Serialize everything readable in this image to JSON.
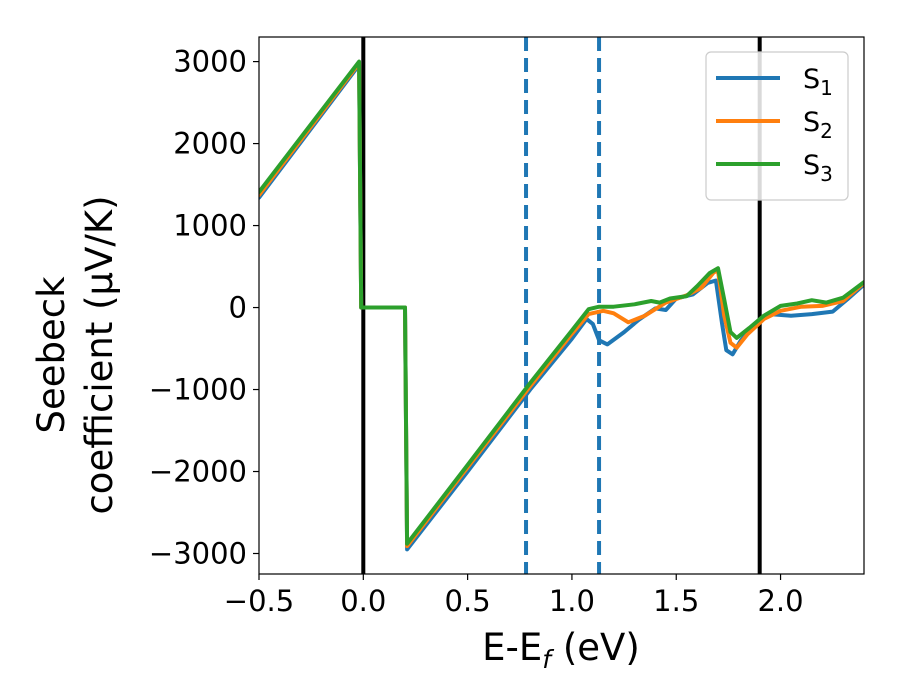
{
  "chart_data": {
    "type": "line",
    "xlabel": "E-E_f (eV)",
    "xlabel_parts": {
      "main": "E-E",
      "sub": "f",
      "tail": " (eV)"
    },
    "ylabel": "Seebeck coefficient (μV/K)",
    "ylabel_lines": [
      "Seebeck",
      "coefficient  (μV/K)"
    ],
    "xlim": [
      -0.5,
      2.4
    ],
    "ylim": [
      -3250,
      3300
    ],
    "xticks": [
      -0.5,
      0.0,
      0.5,
      1.0,
      1.5,
      2.0
    ],
    "xtick_labels": [
      "−0.5",
      "0.0",
      "0.5",
      "1.0",
      "1.5",
      "2.0"
    ],
    "yticks": [
      -3000,
      -2000,
      -1000,
      0,
      1000,
      2000,
      3000
    ],
    "ytick_labels": [
      "−3000",
      "−2000",
      "−1000",
      "0",
      "1000",
      "2000",
      "3000"
    ],
    "grid": false,
    "legend_position": "top-right",
    "vlines": [
      {
        "x": 0.0,
        "style": "solid",
        "color": "#000000"
      },
      {
        "x": 1.9,
        "style": "solid",
        "color": "#000000"
      },
      {
        "x": 0.78,
        "style": "dashed",
        "color": "#1f77b4"
      },
      {
        "x": 1.13,
        "style": "dashed",
        "color": "#1f77b4"
      }
    ],
    "series": [
      {
        "name": "S_1",
        "base": "S",
        "sub": "1",
        "color": "#1f77b4",
        "points": [
          [
            -0.5,
            1340
          ],
          [
            -0.02,
            2960
          ],
          [
            -0.01,
            0
          ],
          [
            0.2,
            0
          ],
          [
            0.21,
            -2950
          ],
          [
            0.5,
            -2000
          ],
          [
            0.8,
            -1000
          ],
          [
            1.0,
            -380
          ],
          [
            1.07,
            -140
          ],
          [
            1.1,
            -200
          ],
          [
            1.13,
            -400
          ],
          [
            1.17,
            -450
          ],
          [
            1.25,
            -300
          ],
          [
            1.32,
            -150
          ],
          [
            1.4,
            -10
          ],
          [
            1.45,
            -30
          ],
          [
            1.5,
            110
          ],
          [
            1.58,
            160
          ],
          [
            1.65,
            300
          ],
          [
            1.69,
            330
          ],
          [
            1.72,
            -200
          ],
          [
            1.74,
            -520
          ],
          [
            1.77,
            -570
          ],
          [
            1.81,
            -400
          ],
          [
            1.88,
            -200
          ],
          [
            1.95,
            -80
          ],
          [
            2.05,
            -100
          ],
          [
            2.15,
            -80
          ],
          [
            2.25,
            -50
          ],
          [
            2.32,
            100
          ],
          [
            2.4,
            280
          ]
        ]
      },
      {
        "name": "S_2",
        "base": "S",
        "sub": "2",
        "color": "#ff7f0e",
        "points": [
          [
            -0.5,
            1370
          ],
          [
            -0.02,
            2980
          ],
          [
            -0.01,
            0
          ],
          [
            0.2,
            0
          ],
          [
            0.21,
            -2910
          ],
          [
            0.5,
            -1950
          ],
          [
            0.8,
            -960
          ],
          [
            1.0,
            -320
          ],
          [
            1.08,
            -80
          ],
          [
            1.15,
            -40
          ],
          [
            1.2,
            -70
          ],
          [
            1.27,
            -180
          ],
          [
            1.35,
            -100
          ],
          [
            1.45,
            60
          ],
          [
            1.55,
            150
          ],
          [
            1.62,
            240
          ],
          [
            1.68,
            430
          ],
          [
            1.7,
            450
          ],
          [
            1.73,
            -100
          ],
          [
            1.76,
            -430
          ],
          [
            1.79,
            -490
          ],
          [
            1.84,
            -330
          ],
          [
            1.92,
            -140
          ],
          [
            2.0,
            -40
          ],
          [
            2.1,
            10
          ],
          [
            2.2,
            20
          ],
          [
            2.3,
            80
          ],
          [
            2.4,
            300
          ]
        ]
      },
      {
        "name": "S_3",
        "base": "S",
        "sub": "3",
        "color": "#2ca02c",
        "points": [
          [
            -0.5,
            1410
          ],
          [
            -0.02,
            3000
          ],
          [
            -0.01,
            0
          ],
          [
            0.2,
            0
          ],
          [
            0.21,
            -2880
          ],
          [
            0.5,
            -1920
          ],
          [
            0.8,
            -920
          ],
          [
            1.0,
            -280
          ],
          [
            1.08,
            -20
          ],
          [
            1.13,
            10
          ],
          [
            1.2,
            10
          ],
          [
            1.3,
            40
          ],
          [
            1.38,
            80
          ],
          [
            1.42,
            60
          ],
          [
            1.47,
            110
          ],
          [
            1.55,
            140
          ],
          [
            1.6,
            260
          ],
          [
            1.66,
            420
          ],
          [
            1.7,
            480
          ],
          [
            1.73,
            100
          ],
          [
            1.76,
            -300
          ],
          [
            1.79,
            -370
          ],
          [
            1.85,
            -250
          ],
          [
            1.92,
            -100
          ],
          [
            2.0,
            20
          ],
          [
            2.08,
            50
          ],
          [
            2.15,
            90
          ],
          [
            2.22,
            60
          ],
          [
            2.3,
            120
          ],
          [
            2.4,
            310
          ]
        ]
      }
    ]
  }
}
